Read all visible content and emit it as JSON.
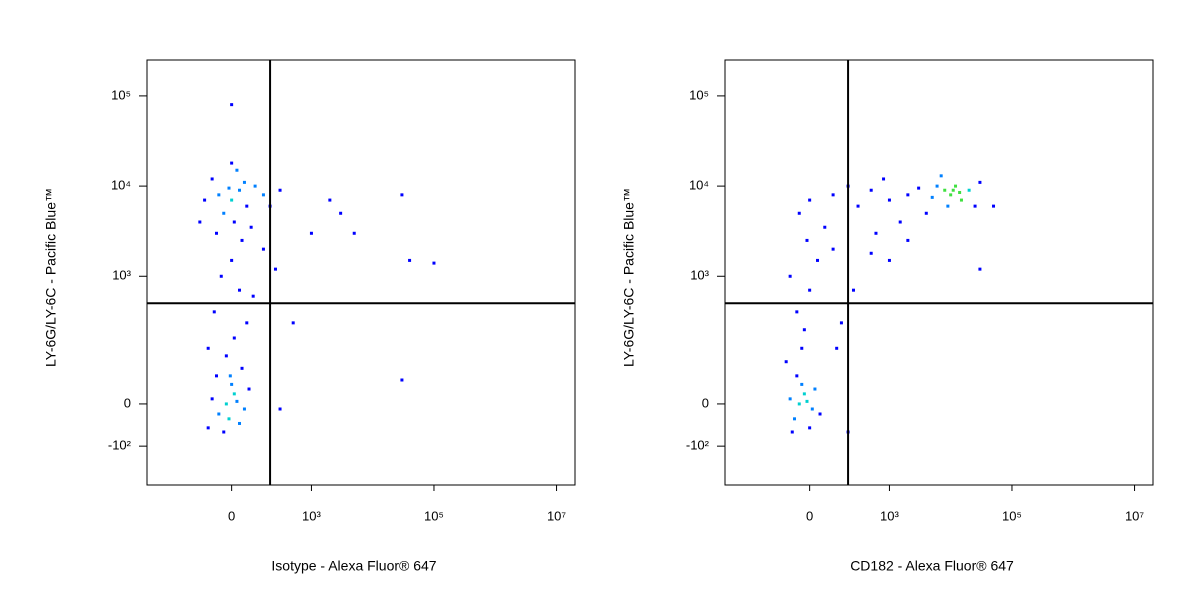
{
  "chart_data": [
    {
      "type": "scatter",
      "x_label": "Isotype - Alexa Fluor® 647",
      "y_label": "LY-6G/LY-6C - Pacific Blue™",
      "xscale": "biexponential",
      "yscale": "biexponential",
      "xlim": [
        -1200,
        20000000
      ],
      "ylim": [
        -300,
        250000
      ],
      "xticks": [
        0,
        {
          "value": 1000,
          "label": "10³"
        },
        {
          "value": 100000,
          "label": "10⁵"
        },
        {
          "value": 10000000,
          "label": "10⁷"
        }
      ],
      "yticks": [
        {
          "value": -100,
          "label": "-10²"
        },
        0,
        {
          "value": 1000,
          "label": "10³"
        },
        {
          "value": 10000,
          "label": "10⁴"
        },
        {
          "value": 100000,
          "label": "10⁵"
        }
      ],
      "quadrant_gate": {
        "x": 200,
        "y": 500
      },
      "x": [
        -50,
        0,
        30,
        -80,
        60,
        20,
        -30,
        100,
        -120,
        10,
        50,
        -10,
        150,
        -60,
        80,
        0,
        200,
        300,
        -150,
        40,
        0,
        -40,
        30,
        -70,
        60,
        10,
        -20,
        90,
        -100,
        40,
        150,
        250,
        -5,
        -20,
        10,
        -50,
        30,
        0,
        -80,
        50,
        -30,
        20,
        -10,
        70,
        -100,
        -60,
        300,
        2000,
        5000,
        40000,
        100000,
        30000,
        500,
        1000,
        3000,
        30000,
        0
      ],
      "values": [
        8000,
        7000,
        9000,
        12000,
        6000,
        15000,
        5000,
        10000,
        7000,
        4000,
        11000,
        9500,
        8000,
        3000,
        3500,
        18000,
        6000,
        9000,
        4000,
        2500,
        1500,
        1000,
        700,
        400,
        300,
        200,
        120,
        600,
        150,
        80,
        2000,
        1200,
        60,
        0,
        20,
        -20,
        -40,
        40,
        10,
        -10,
        -60,
        5,
        -30,
        30,
        -50,
        60,
        -10,
        7000,
        3000,
        1500,
        1400,
        50,
        300,
        3000,
        5000,
        8000,
        80000
      ]
    },
    {
      "type": "scatter",
      "x_label": "CD182 - Alexa Fluor® 647",
      "y_label": "LY-6G/LY-6C - Pacific Blue™",
      "xscale": "biexponential",
      "yscale": "biexponential",
      "xlim": [
        -1200,
        20000000
      ],
      "ylim": [
        -300,
        250000
      ],
      "xticks": [
        0,
        {
          "value": 1000,
          "label": "10³"
        },
        {
          "value": 100000,
          "label": "10⁵"
        },
        {
          "value": 10000000,
          "label": "10⁷"
        }
      ],
      "yticks": [
        {
          "value": -100,
          "label": "-10²"
        },
        0,
        {
          "value": 1000,
          "label": "10³"
        },
        {
          "value": 10000,
          "label": "10⁴"
        },
        {
          "value": 100000,
          "label": "10⁵"
        }
      ],
      "quadrant_gate": {
        "x": 200,
        "y": 500
      },
      "x": [
        -40,
        -20,
        -60,
        0,
        -30,
        -80,
        10,
        -50,
        -10,
        -70,
        20,
        -100,
        40,
        -30,
        -20,
        -50,
        0,
        -80,
        30,
        -10,
        60,
        -40,
        100,
        150,
        200,
        250,
        120,
        0,
        100,
        300,
        500,
        1000,
        2000,
        3000,
        5000,
        8000,
        10000,
        12000,
        15000,
        20000,
        25000,
        30000,
        7000,
        4000,
        1500,
        600,
        800,
        200,
        9000,
        6000,
        11000,
        14000,
        50000,
        30000,
        1000,
        2000,
        500
      ],
      "values": [
        0,
        20,
        -30,
        -50,
        40,
        10,
        -10,
        60,
        5,
        -60,
        30,
        100,
        -20,
        150,
        250,
        400,
        700,
        1000,
        1500,
        2500,
        3500,
        5000,
        2000,
        300,
        -60,
        700,
        150,
        7000,
        8000,
        6000,
        9000,
        7000,
        8000,
        9500,
        7500,
        9000,
        8000,
        10000,
        7000,
        9000,
        6000,
        11000,
        13000,
        5000,
        4000,
        3000,
        12000,
        10000,
        6000,
        10000,
        9000,
        8500,
        6000,
        1200,
        1500,
        2500,
        1800
      ]
    }
  ]
}
